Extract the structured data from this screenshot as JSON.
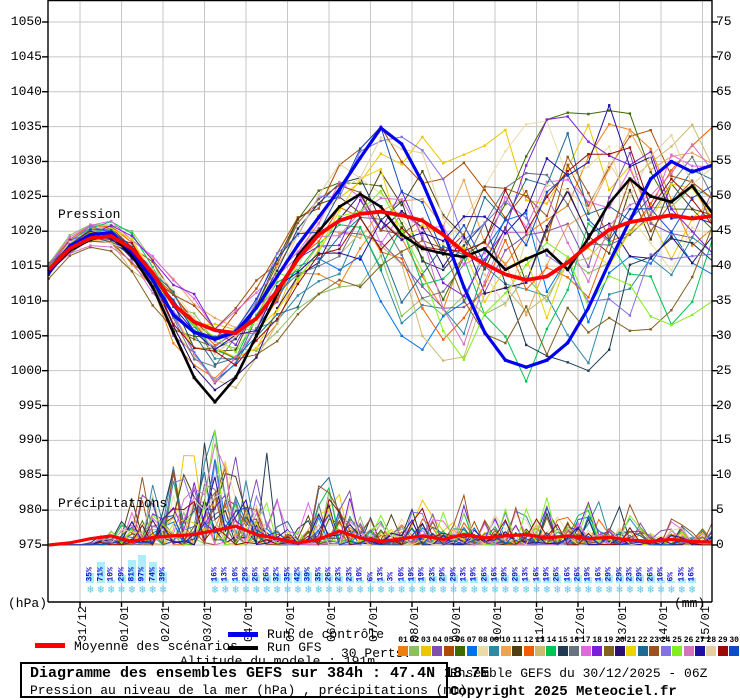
{
  "labels": {
    "pressure_section": "Pression",
    "precip_section": "Précipitations"
  },
  "legend": {
    "mean_label": "Moyenne des scénarios",
    "control_label": "Run de contrôle",
    "gfs_label": "Run GFS",
    "perts_label": "30 Perts."
  },
  "footer": {
    "altitude": "Altitude du modele : 191m",
    "run_info": "Ensemble GEFS du 30/12/2025 - 06Z",
    "copyright": "Copyright 2025 Meteociel.fr"
  },
  "chart_data": {
    "type": "line",
    "title": "Diagramme des ensembles GEFS sur 384h : 47.4N 18.7E",
    "subtitle": "Pression au niveau de la mer (hPa) , précipitations (mm)",
    "hours_step": 12,
    "hours_range": [
      0,
      384
    ],
    "left_axis": {
      "label": "(hPa)",
      "ticks": [
        1050,
        1045,
        1040,
        1035,
        1030,
        1025,
        1020,
        1015,
        1010,
        1005,
        1000,
        995,
        990,
        985,
        980,
        975
      ]
    },
    "right_axis": {
      "label": "(mm)",
      "ticks": [
        75,
        70,
        65,
        60,
        55,
        50,
        45,
        40,
        35,
        30,
        25,
        20,
        15,
        10,
        5,
        0
      ]
    },
    "dates": [
      "31/12",
      "01/01",
      "02/01",
      "03/01",
      "04/01",
      "05/01",
      "06/01",
      "07/01",
      "08/01",
      "09/01",
      "10/01",
      "11/01",
      "12/01",
      "13/01",
      "14/01",
      "15/01"
    ],
    "series": [
      {
        "name": "Moyenne des scénarios",
        "color": "#ff0000",
        "values": [
          1014.5,
          1017.5,
          1019,
          1019.3,
          1017.5,
          1014,
          1009.5,
          1007,
          1005.8,
          1005.4,
          1007.5,
          1011.5,
          1016,
          1019.5,
          1021.5,
          1022.5,
          1022.8,
          1022.3,
          1021.5,
          1019.5,
          1017,
          1015.3,
          1013.8,
          1013,
          1013.5,
          1015.5,
          1018,
          1020.2,
          1021.3,
          1021.8,
          1022.3,
          1021.8,
          1022.2
        ]
      },
      {
        "name": "Run de contrôle",
        "color": "#0000ee",
        "values": [
          1014,
          1017.8,
          1019.5,
          1019.8,
          1017,
          1013,
          1008,
          1005.5,
          1004.5,
          1005.5,
          1009,
          1013.5,
          1018,
          1022,
          1026,
          1030.5,
          1034.8,
          1032.5,
          1027,
          1020,
          1012,
          1005.5,
          1001.5,
          1000.5,
          1001.5,
          1004,
          1009,
          1015.5,
          1021.5,
          1027.5,
          1030,
          1028.5,
          1029.5
        ]
      },
      {
        "name": "Run GFS",
        "color": "#000000",
        "values": [
          1014.2,
          1017.2,
          1018.8,
          1019.5,
          1016.5,
          1012,
          1005.5,
          999,
          995.5,
          999,
          1005,
          1011,
          1016.5,
          1020,
          1023.5,
          1025.3,
          1023.5,
          1019.5,
          1017.5,
          1016.8,
          1016.3,
          1017.5,
          1014.5,
          1016,
          1017.3,
          1014.5,
          1019,
          1024,
          1027.5,
          1025,
          1024.2,
          1026.5,
          1022.5
        ]
      }
    ],
    "mean_precip": [
      0,
      0.3,
      0.9,
      1.3,
      0.5,
      1.1,
      1.3,
      1.5,
      2.1,
      2.7,
      1.5,
      0.9,
      0.3,
      0.8,
      2.0,
      1.0,
      0.5,
      0.9,
      1.3,
      0.8,
      1.5,
      1.0,
      1.3,
      1.5,
      1.0,
      1.3,
      0.9,
      1.1,
      0.7,
      0.5,
      0.8,
      0.5,
      0.4
    ],
    "ensemble": {
      "count": 30,
      "labels": [
        "01",
        "02",
        "03",
        "04",
        "05",
        "06",
        "07",
        "08",
        "09",
        "10",
        "11",
        "12",
        "13",
        "14",
        "15",
        "16",
        "17",
        "18",
        "19",
        "20",
        "21",
        "22",
        "23",
        "24",
        "25",
        "26",
        "27",
        "28",
        "29",
        "30"
      ],
      "colors": [
        "#ed7f10",
        "#8cbf5f",
        "#edc500",
        "#7f4fb0",
        "#b04a00",
        "#3f6a00",
        "#0073e6",
        "#eadca6",
        "#2f89a3",
        "#eda350",
        "#4f3f10",
        "#f25c00",
        "#ccba70",
        "#00c352",
        "#1f3a52",
        "#6a7380",
        "#e366e3",
        "#7a1fd9",
        "#826121",
        "#2a1070",
        "#edd200",
        "#1f6a92",
        "#9a5221",
        "#8273e3",
        "#82ed1f",
        "#d473c4",
        "#1f10a3",
        "#e3cfa3",
        "#9a0808",
        "#104ac4"
      ],
      "envelope_min": [
        1013,
        1016,
        1017.5,
        1017,
        1014,
        1009,
        1003,
        999,
        996,
        997,
        1000,
        1004,
        1008,
        1011,
        1012,
        1012,
        1008,
        1005,
        1002,
        1000,
        999,
        998,
        998,
        997,
        998,
        999,
        1000,
        1003,
        1004,
        1005,
        1006,
        1008,
        1010
      ],
      "envelope_max": [
        1015.8,
        1019.5,
        1021,
        1021.5,
        1020,
        1018,
        1014,
        1011,
        1009,
        1010,
        1013,
        1018,
        1022,
        1026,
        1030,
        1033,
        1035,
        1035,
        1034,
        1033,
        1034,
        1035,
        1035,
        1036,
        1036,
        1037,
        1038,
        1039,
        1039,
        1038,
        1037,
        1036,
        1035
      ],
      "precip_events": [
        {
          "c": 40,
          "w": 10,
          "m": 3
        },
        {
          "c": 56,
          "w": 14,
          "m": 8
        },
        {
          "c": 80,
          "w": 16,
          "m": 13
        },
        {
          "c": 96,
          "w": 14,
          "m": 16
        },
        {
          "c": 110,
          "w": 14,
          "m": 12
        },
        {
          "c": 128,
          "w": 12,
          "m": 8
        },
        {
          "c": 160,
          "w": 12,
          "m": 11
        },
        {
          "c": 176,
          "w": 10,
          "m": 7
        },
        {
          "c": 196,
          "w": 14,
          "m": 6
        },
        {
          "c": 216,
          "w": 14,
          "m": 7
        },
        {
          "c": 240,
          "w": 14,
          "m": 6
        },
        {
          "c": 264,
          "w": 12,
          "m": 6
        },
        {
          "c": 288,
          "w": 14,
          "m": 7
        },
        {
          "c": 312,
          "w": 14,
          "m": 6
        },
        {
          "c": 336,
          "w": 12,
          "m": 5
        },
        {
          "c": 360,
          "w": 12,
          "m": 4
        },
        {
          "c": 380,
          "w": 8,
          "m": 4
        }
      ]
    },
    "snow_prob": {
      "clusters": [
        {
          "start_hour": 24,
          "step": 6,
          "values": [
            35,
            71,
            10,
            29,
            81,
            97,
            74,
            39
          ]
        },
        {
          "start_hour": 96,
          "step": 6,
          "values": [
            16,
            13,
            10,
            29,
            26,
            26,
            32,
            35,
            42,
            39,
            35,
            26,
            23,
            23,
            10,
            6,
            13,
            3,
            10,
            19,
            19,
            23,
            29,
            29,
            13,
            19,
            26,
            16,
            29,
            29,
            13,
            16,
            19,
            26,
            16,
            26,
            19,
            16,
            29,
            29,
            23,
            29,
            26,
            10,
            6,
            13,
            16
          ]
        }
      ]
    },
    "layout_hints": {
      "grid": true,
      "legend_position": "bottom",
      "highlight_color": "#aaeeff",
      "snow_icon_color": "#5cc3e6"
    }
  }
}
